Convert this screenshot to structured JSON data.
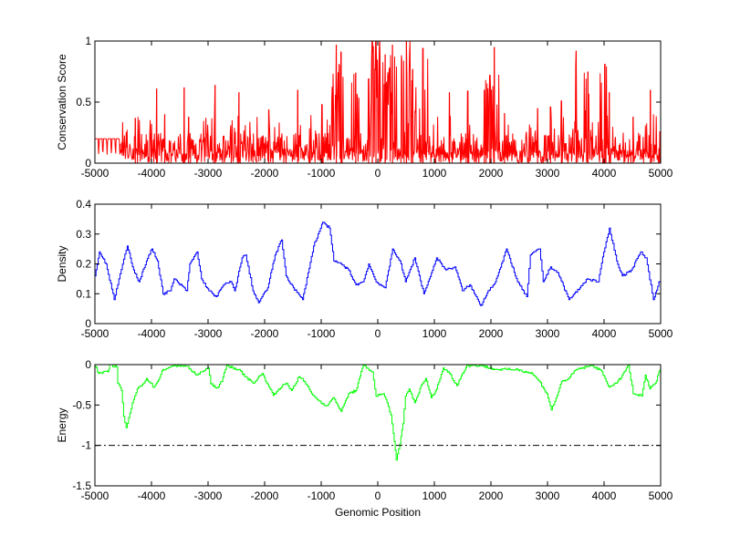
{
  "chart_data": [
    {
      "type": "line",
      "id": "conservation",
      "ylabel": "Conservation Score",
      "xlabel": "",
      "xlim": [
        -5000,
        5000
      ],
      "ylim": [
        0,
        1
      ],
      "xticks": [
        -5000,
        -4000,
        -3000,
        -2000,
        -1000,
        0,
        1000,
        2000,
        3000,
        4000,
        5000
      ],
      "yticks": [
        0,
        0.5,
        1
      ],
      "ytick_labels": [
        "0",
        "0.5",
        "1"
      ],
      "color": "#ff0000",
      "baseline_region": {
        "x": [
          -5000,
          -4550
        ],
        "value": 0.2
      },
      "peaks": {
        "x": [
          -4286,
          -3909,
          -3766,
          -3422,
          -3344,
          -2876,
          -2454,
          -1928,
          -1415,
          -987,
          -733,
          -649,
          -389,
          -162,
          -97,
          -32,
          33,
          130,
          260,
          507,
          617,
          799,
          1266,
          1591,
          1884,
          1981,
          2059,
          2240,
          2825,
          3053,
          3247,
          3507,
          3715,
          4014,
          4092,
          4513,
          4819,
          4987
        ],
        "y": [
          0.37,
          0.61,
          0.4,
          0.62,
          0.38,
          0.64,
          0.58,
          0.44,
          0.6,
          0.48,
          0.97,
          0.91,
          0.74,
          0.69,
          1,
          1,
          1,
          0.89,
          0.97,
          1,
          0.77,
          0.94,
          0.58,
          0.59,
          0.6,
          0.72,
          0.95,
          0.41,
          0.45,
          0.46,
          0.51,
          0.92,
          0.75,
          0.81,
          0.58,
          0.38,
          0.6,
          0.26
        ]
      }
    },
    {
      "type": "line",
      "id": "density",
      "ylabel": "Density",
      "xlabel": "",
      "xlim": [
        -5000,
        5000
      ],
      "ylim": [
        0,
        0.4
      ],
      "xticks": [
        -5000,
        -4000,
        -3000,
        -2000,
        -1000,
        0,
        1000,
        2000,
        3000,
        4000,
        5000
      ],
      "yticks": [
        0,
        0.1,
        0.2,
        0.3,
        0.4
      ],
      "ytick_labels": [
        "0",
        "0.1",
        "0.2",
        "0.3",
        "0.4"
      ],
      "color": "#0000ff",
      "x": [
        -5000,
        -4922,
        -4805,
        -4662,
        -4578,
        -4429,
        -4318,
        -4221,
        -4091,
        -3993,
        -3896,
        -3799,
        -3669,
        -3604,
        -3377,
        -3325,
        -3195,
        -3117,
        -2987,
        -2857,
        -2727,
        -2597,
        -2532,
        -2402,
        -2337,
        -2208,
        -2110,
        -1948,
        -1818,
        -1701,
        -1623,
        -1493,
        -1331,
        -1234,
        -1136,
        -974,
        -857,
        -779,
        -649,
        -519,
        -389,
        -259,
        -162,
        -32,
        130,
        260,
        390,
        487,
        650,
        812,
        909,
        1039,
        1201,
        1364,
        1494,
        1624,
        1819,
        1949,
        2078,
        2208,
        2273,
        2468,
        2630,
        2695,
        2858,
        2923,
        3053,
        3182,
        3377,
        3572,
        3702,
        3897,
        3994,
        4092,
        4221,
        4319,
        4481,
        4643,
        4741,
        4870,
        4968,
        5000
      ],
      "y": [
        0.16,
        0.24,
        0.2,
        0.08,
        0.15,
        0.26,
        0.18,
        0.14,
        0.21,
        0.25,
        0.21,
        0.1,
        0.11,
        0.15,
        0.11,
        0.2,
        0.24,
        0.15,
        0.11,
        0.09,
        0.13,
        0.14,
        0.11,
        0.22,
        0.23,
        0.11,
        0.07,
        0.12,
        0.23,
        0.28,
        0.16,
        0.12,
        0.08,
        0.17,
        0.26,
        0.34,
        0.32,
        0.21,
        0.2,
        0.18,
        0.13,
        0.14,
        0.2,
        0.14,
        0.12,
        0.25,
        0.21,
        0.14,
        0.22,
        0.1,
        0.15,
        0.22,
        0.18,
        0.19,
        0.11,
        0.13,
        0.06,
        0.11,
        0.14,
        0.21,
        0.25,
        0.14,
        0.09,
        0.23,
        0.25,
        0.14,
        0.19,
        0.17,
        0.08,
        0.12,
        0.15,
        0.14,
        0.24,
        0.32,
        0.21,
        0.16,
        0.18,
        0.24,
        0.22,
        0.08,
        0.14,
        0.14
      ]
    },
    {
      "type": "line",
      "id": "energy",
      "ylabel": "Energy",
      "xlabel": "Genomic Position",
      "xlim": [
        -5000,
        5000
      ],
      "ylim": [
        -1.5,
        0
      ],
      "xticks": [
        -5000,
        -4000,
        -3000,
        -2000,
        -1000,
        0,
        1000,
        2000,
        3000,
        4000,
        5000
      ],
      "yticks": [
        -1.5,
        -1,
        -0.5,
        0
      ],
      "ytick_labels": [
        "-1.5",
        "-1",
        "-0.5",
        "0"
      ],
      "color": "#00ff00",
      "threshold": {
        "y": -1,
        "style": "dash-dot",
        "color": "#000000"
      },
      "x": [
        -5000,
        -4935,
        -4773,
        -4740,
        -4623,
        -4597,
        -4532,
        -4494,
        -4448,
        -4383,
        -4318,
        -4253,
        -4156,
        -4091,
        -3961,
        -3896,
        -3799,
        -3701,
        -3539,
        -3377,
        -3214,
        -3117,
        -3000,
        -2954,
        -2857,
        -2760,
        -2675,
        -2467,
        -2337,
        -2208,
        -2045,
        -1948,
        -1850,
        -1753,
        -1623,
        -1526,
        -1396,
        -1298,
        -1169,
        -1039,
        -909,
        -779,
        -649,
        -519,
        -389,
        -259,
        -97,
        -32,
        98,
        163,
        228,
        273,
        325,
        390,
        442,
        487,
        552,
        650,
        780,
        845,
        942,
        1039,
        1156,
        1267,
        1396,
        1494,
        1572,
        1819,
        2078,
        2468,
        2728,
        2858,
        2988,
        3066,
        3169,
        3247,
        3377,
        3507,
        3799,
        3962,
        4092,
        4221,
        4319,
        4429,
        4513,
        4663,
        4728,
        4806,
        4903,
        4987
      ],
      "y": [
        -0.02,
        -0.11,
        -0.09,
        0,
        -0.03,
        -0.23,
        -0.32,
        -0.64,
        -0.78,
        -0.6,
        -0.43,
        -0.3,
        -0.24,
        -0.17,
        -0.28,
        -0.21,
        -0.06,
        -0.04,
        -0.01,
        -0.02,
        -0.13,
        -0.09,
        -0.04,
        -0.24,
        -0.29,
        -0.21,
        -0.01,
        -0.06,
        -0.15,
        -0.23,
        -0.11,
        -0.24,
        -0.38,
        -0.3,
        -0.23,
        -0.32,
        -0.15,
        -0.21,
        -0.36,
        -0.45,
        -0.51,
        -0.41,
        -0.58,
        -0.36,
        -0.32,
        -0.01,
        -0.09,
        -0.39,
        -0.36,
        -0.47,
        -0.62,
        -0.85,
        -1.18,
        -0.98,
        -0.73,
        -0.39,
        -0.3,
        -0.47,
        -0.24,
        -0.17,
        -0.41,
        -0.3,
        -0.04,
        -0.11,
        -0.26,
        -0.11,
        -0.01,
        -0.01,
        -0.06,
        -0.06,
        -0.11,
        -0.21,
        -0.36,
        -0.56,
        -0.38,
        -0.21,
        -0.17,
        -0.06,
        -0.01,
        -0.09,
        -0.28,
        -0.23,
        -0.13,
        -0.01,
        -0.36,
        -0.39,
        -0.13,
        -0.3,
        -0.23,
        -0.06
      ]
    }
  ]
}
